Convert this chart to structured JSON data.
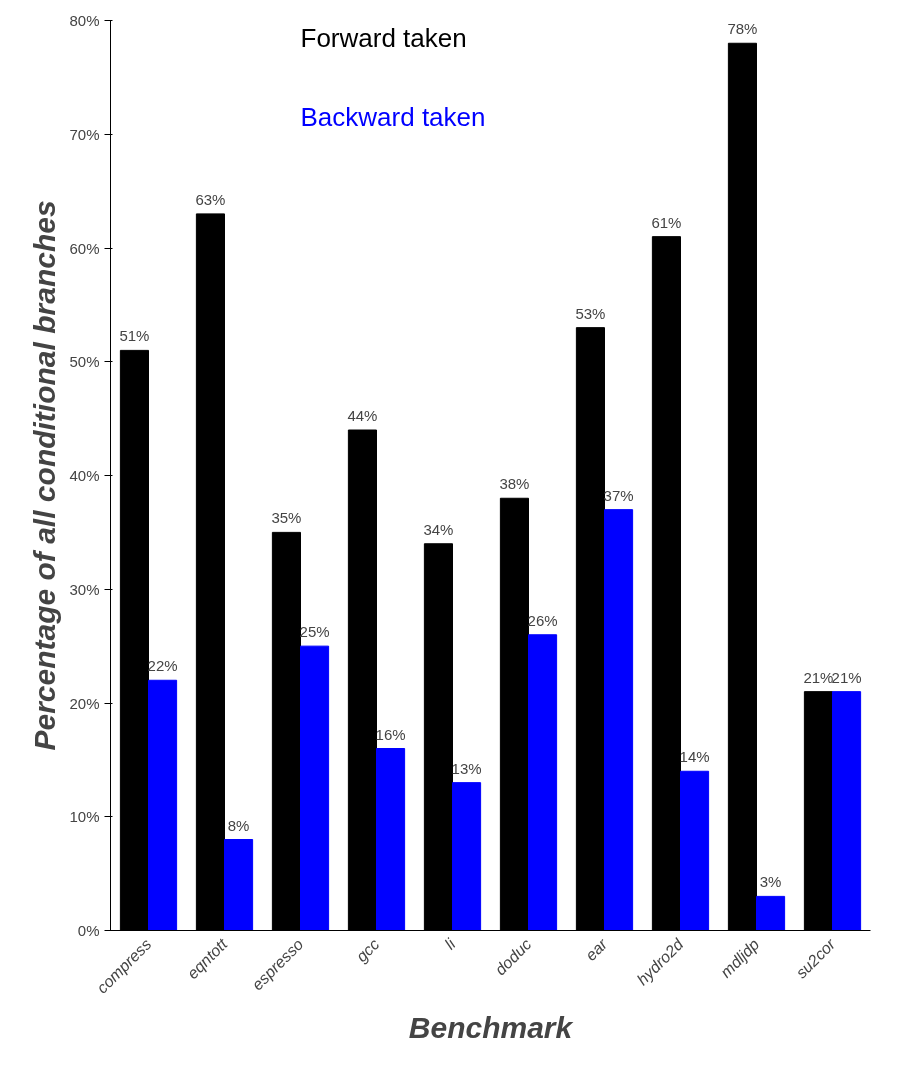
{
  "chart_data": {
    "type": "bar",
    "xlabel": "Benchmark",
    "ylabel": "Percentage of all conditional branches",
    "categories": [
      "compress",
      "eqntott",
      "espresso",
      "gcc",
      "li",
      "doduc",
      "ear",
      "hydro2d",
      "mdljdp",
      "su2cor"
    ],
    "series": [
      {
        "name": "Forward taken",
        "color": "#000000",
        "values": [
          51,
          63,
          35,
          44,
          34,
          38,
          53,
          61,
          78,
          21
        ],
        "value_labels": [
          "51%",
          "63%",
          "35%",
          "44%",
          "34%",
          "38%",
          "53%",
          "61%",
          "78%",
          "21%"
        ]
      },
      {
        "name": "Backward taken",
        "color": "#0000ff",
        "values": [
          22,
          8,
          25,
          16,
          13,
          26,
          37,
          14,
          3,
          21
        ],
        "value_labels": [
          "22%",
          "8%",
          "25%",
          "16%",
          "13%",
          "26%",
          "37%",
          "14%",
          "3%",
          "21%"
        ]
      }
    ],
    "ylim": [
      0,
      80
    ],
    "yticks": [
      {
        "value": 0,
        "label": "0%"
      },
      {
        "value": 10,
        "label": "10%"
      },
      {
        "value": 20,
        "label": "20%"
      },
      {
        "value": 30,
        "label": "30%"
      },
      {
        "value": 40,
        "label": "40%"
      },
      {
        "value": 50,
        "label": "50%"
      },
      {
        "value": 60,
        "label": "60%"
      },
      {
        "value": 70,
        "label": "70%"
      },
      {
        "value": 80,
        "label": "80%"
      }
    ],
    "grid": false,
    "legend": "top"
  }
}
